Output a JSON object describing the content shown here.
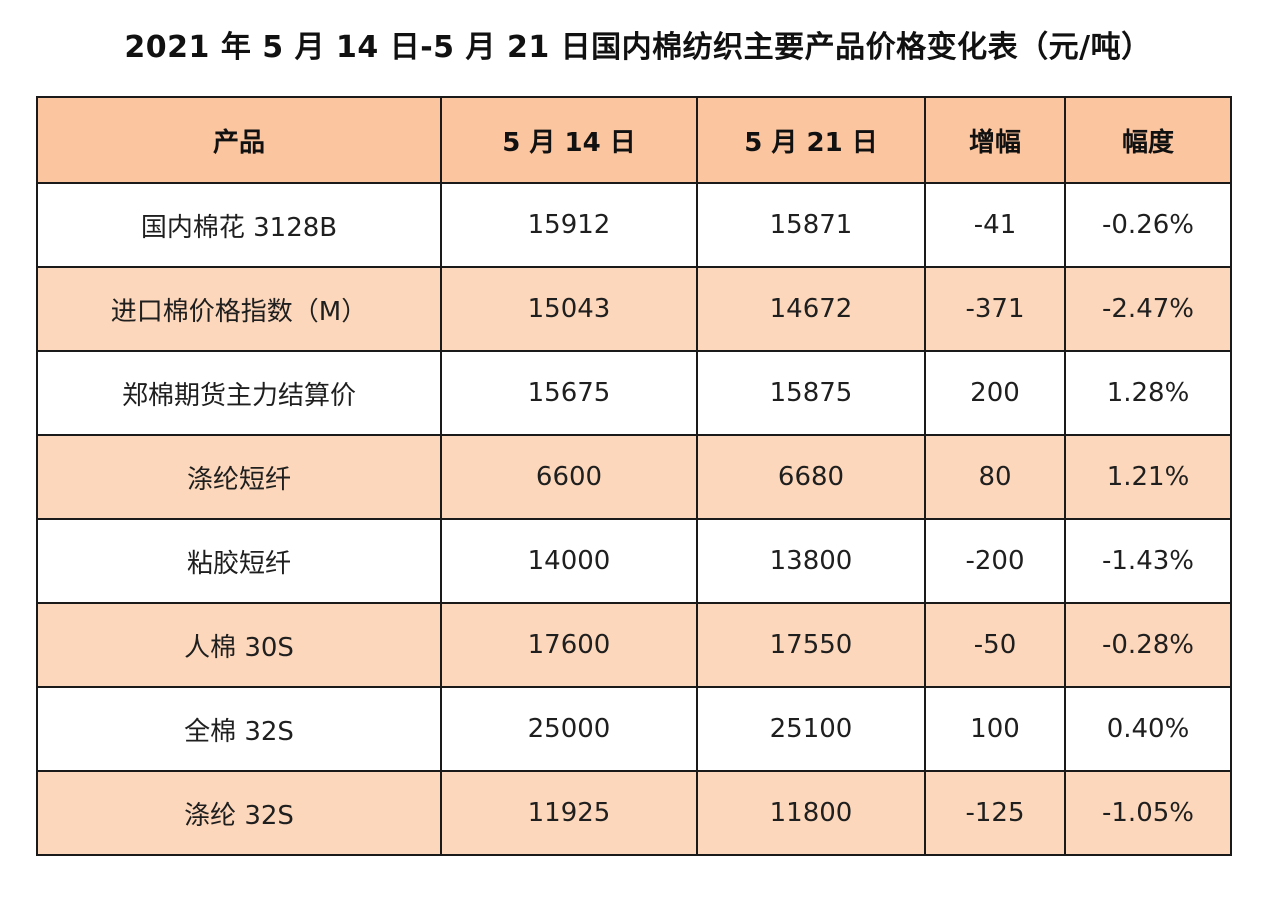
{
  "title": "2021 年 5 月 14 日-5 月 21 日国内棉纺织主要产品价格变化表（元/吨）",
  "colors": {
    "header_bg": "#fbc59f",
    "stripe_bg": "#fcd7bb",
    "white_bg": "#ffffff",
    "border": "#1a1a1a"
  },
  "table": {
    "headers": [
      "产品",
      "5 月 14 日",
      "5 月 21 日",
      "增幅",
      "幅度"
    ],
    "rows": [
      [
        "国内棉花 3128B",
        "15912",
        "15871",
        "-41",
        "-0.26%"
      ],
      [
        "进口棉价格指数（M）",
        "15043",
        "14672",
        "-371",
        "-2.47%"
      ],
      [
        "郑棉期货主力结算价",
        "15675",
        "15875",
        "200",
        "1.28%"
      ],
      [
        "涤纶短纤",
        "6600",
        "6680",
        "80",
        "1.21%"
      ],
      [
        "粘胶短纤",
        "14000",
        "13800",
        "-200",
        "-1.43%"
      ],
      [
        "人棉 30S",
        "17600",
        "17550",
        "-50",
        "-0.28%"
      ],
      [
        "全棉 32S",
        "25000",
        "25100",
        "100",
        "0.40%"
      ],
      [
        "涤纶 32S",
        "11925",
        "11800",
        "-125",
        "-1.05%"
      ]
    ]
  }
}
